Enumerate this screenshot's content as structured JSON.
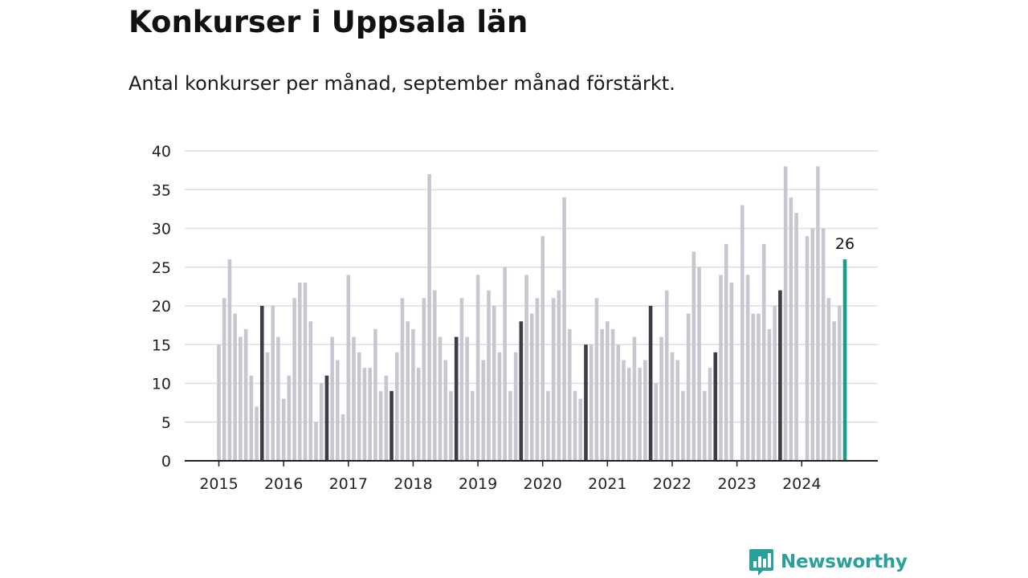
{
  "title": "Konkurser i Uppsala län",
  "subtitle": "Antal konkurser per månad, september månad förstärkt.",
  "brand": {
    "name": "Newsworthy",
    "icon": "newsworthy-logo-icon",
    "color": "#2aa198"
  },
  "colors": {
    "normal": "#c7c7d0",
    "september": "#3d3d4a",
    "latest": "#1a9b8e",
    "grid": "#dddde3",
    "axis": "#222222"
  },
  "chart_data": {
    "type": "bar",
    "title": "Konkurser i Uppsala län",
    "subtitle": "Antal konkurser per månad, september månad förstärkt.",
    "ylim": [
      0,
      40
    ],
    "yticks": [
      0,
      5,
      10,
      15,
      20,
      25,
      30,
      35,
      40
    ],
    "xtick_labels": [
      "2015",
      "2016",
      "2017",
      "2018",
      "2019",
      "2020",
      "2021",
      "2022",
      "2023",
      "2024"
    ],
    "grid": true,
    "highlight": "september",
    "latest_label": "26",
    "series": [
      {
        "year": "2015",
        "values": [
          15,
          21,
          26,
          19,
          16,
          17,
          11,
          7,
          20,
          14,
          20,
          16
        ]
      },
      {
        "year": "2016",
        "values": [
          8,
          11,
          21,
          23,
          23,
          18,
          5,
          10,
          11,
          16,
          13,
          6
        ]
      },
      {
        "year": "2017",
        "values": [
          24,
          16,
          14,
          12,
          12,
          17,
          9,
          11,
          9,
          14,
          21,
          18
        ]
      },
      {
        "year": "2018",
        "values": [
          17,
          12,
          21,
          37,
          22,
          16,
          13,
          9,
          16,
          21,
          16,
          9
        ]
      },
      {
        "year": "2019",
        "values": [
          24,
          13,
          22,
          20,
          14,
          25,
          9,
          14,
          18,
          24,
          19,
          21
        ]
      },
      {
        "year": "2020",
        "values": [
          29,
          9,
          21,
          22,
          34,
          17,
          9,
          8,
          15,
          15,
          21,
          17
        ]
      },
      {
        "year": "2021",
        "values": [
          18,
          17,
          15,
          13,
          12,
          16,
          12,
          13,
          20,
          10,
          16,
          22
        ]
      },
      {
        "year": "2022",
        "values": [
          14,
          13,
          9,
          19,
          27,
          25,
          9,
          12,
          14,
          24,
          28,
          23
        ]
      },
      {
        "year": "2023",
        "values": [
          0,
          33,
          24,
          19,
          19,
          28,
          17,
          20,
          22,
          38,
          34,
          32
        ]
      },
      {
        "year": "2024",
        "values": [
          0,
          29,
          30,
          38,
          30,
          21,
          18,
          20,
          26
        ]
      }
    ]
  }
}
